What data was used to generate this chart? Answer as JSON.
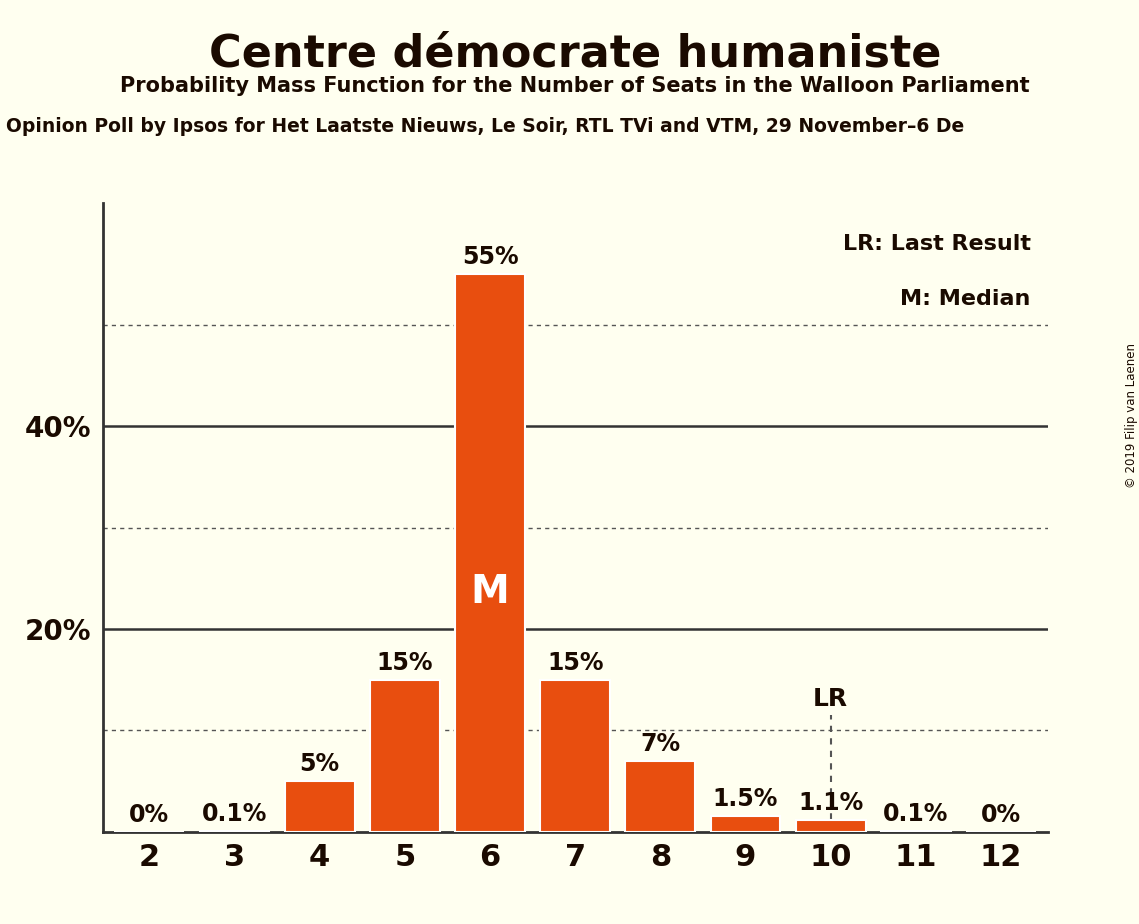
{
  "title": "Centre démocrate humaniste",
  "subtitle": "Probability Mass Function for the Number of Seats in the Walloon Parliament",
  "source": "Opinion Poll by Ipsos for Het Laatste Nieuws, Le Soir, RTL TVi and VTM, 29 November–6 De",
  "copyright": "© 2019 Filip van Laenen",
  "seats": [
    2,
    3,
    4,
    5,
    6,
    7,
    8,
    9,
    10,
    11,
    12
  ],
  "probabilities": [
    0.0,
    0.1,
    5.0,
    15.0,
    55.0,
    15.0,
    7.0,
    1.5,
    1.1,
    0.1,
    0.0
  ],
  "bar_color": "#e84e0f",
  "bar_edge_color": "#ffffff",
  "background_color": "#fffff0",
  "text_color": "#1a0a00",
  "median_seat": 6,
  "last_result_seat": 10,
  "grid_dotted": [
    10,
    30,
    50
  ],
  "grid_solid": [
    20,
    40
  ],
  "ylim": [
    0,
    62
  ],
  "legend_lr": "LR: Last Result",
  "legend_m": "M: Median",
  "bar_width": 0.82
}
